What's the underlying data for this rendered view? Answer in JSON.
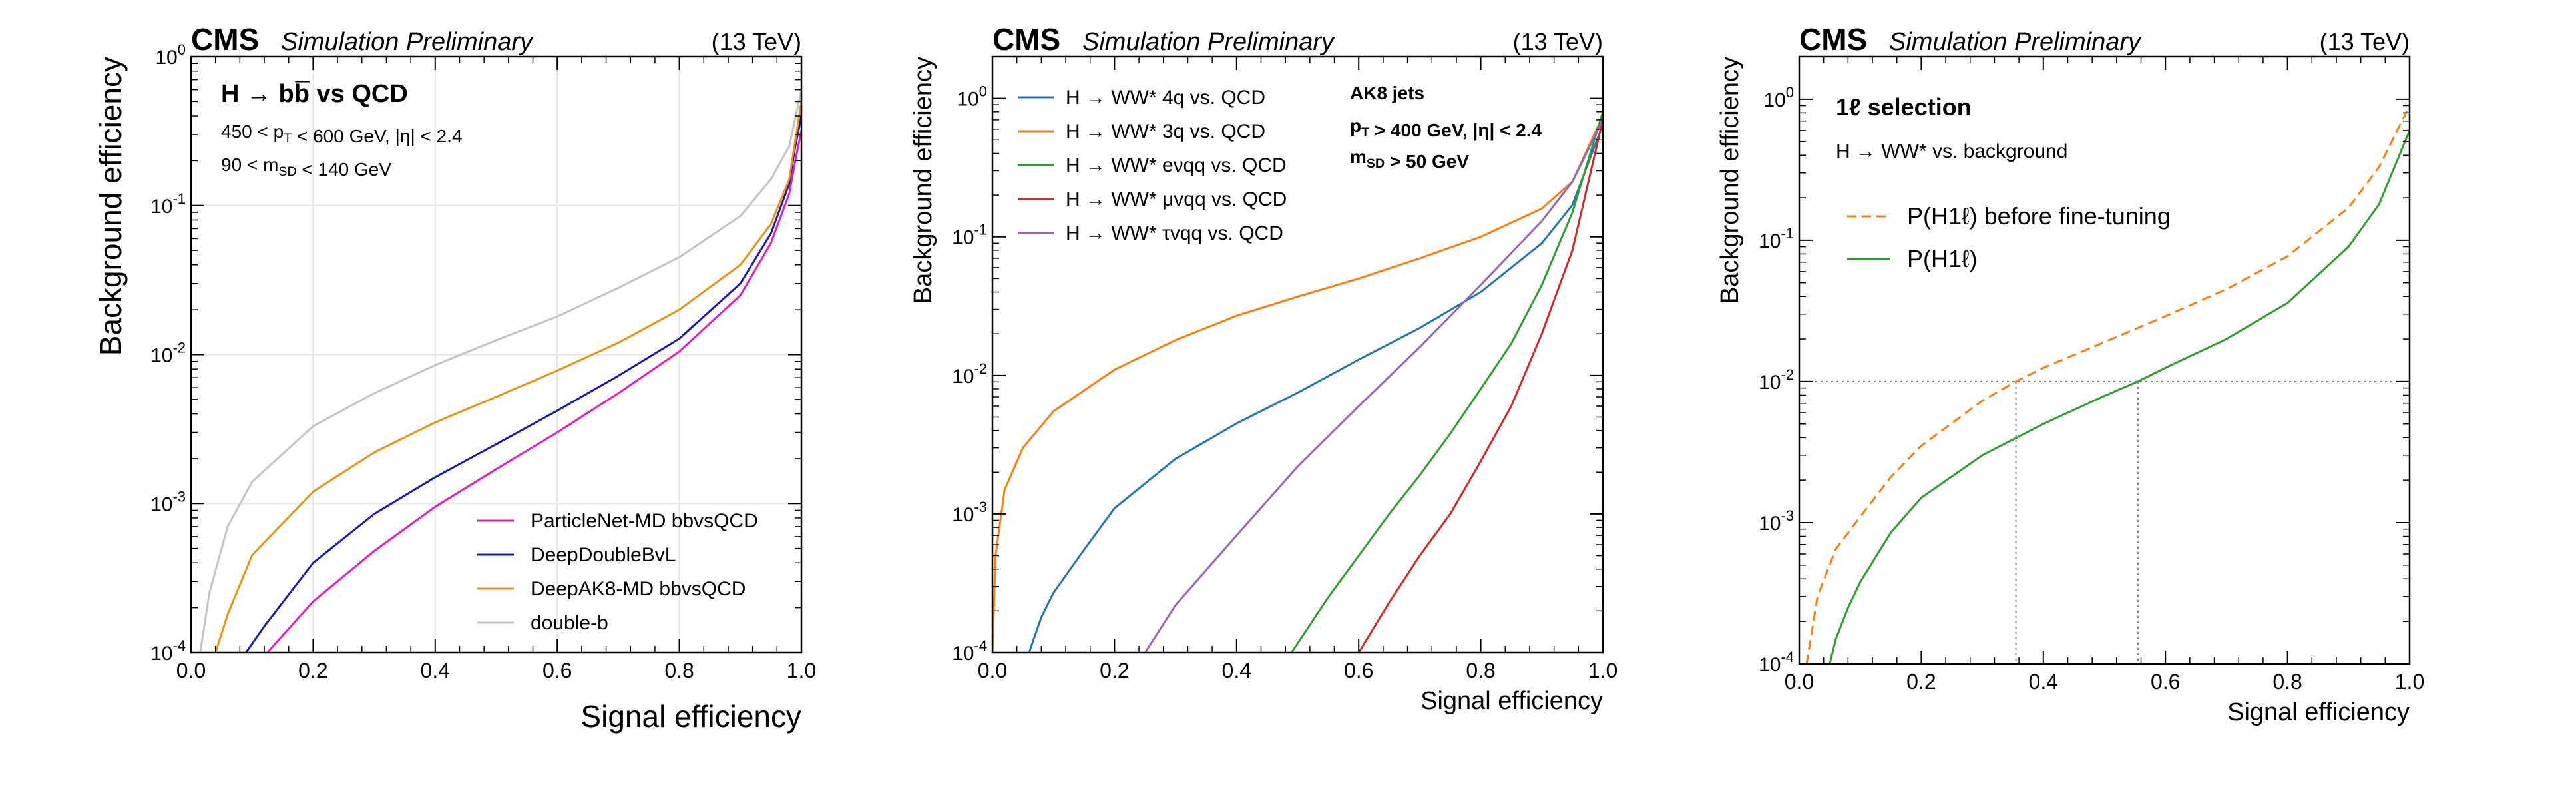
{
  "chart_data": [
    {
      "type": "line",
      "yscale": "log",
      "title_left": "CMS",
      "title_sub": "Simulation Preliminary",
      "title_right": "(13 TeV)",
      "xlabel": "Signal efficiency",
      "ylabel": "Background efficiency",
      "xlim": [
        0.0,
        1.0
      ],
      "ylim": [
        0.0001,
        1
      ],
      "grid": true,
      "xticks": [
        "0.0",
        "0.2",
        "0.4",
        "0.6",
        "0.8",
        "1.0"
      ],
      "yticks": [
        "10^-4",
        "10^-3",
        "10^-2",
        "10^-1",
        "10^0"
      ],
      "annotations": [
        {
          "text": "H → bb̅ vs QCD",
          "bold": true
        },
        {
          "text": "450 < p_T < 600 GeV, |η| < 2.4"
        },
        {
          "text": "90 < m_SD < 140 GeV"
        }
      ],
      "legend_position": "lower-right",
      "series": [
        {
          "name": "ParticleNet-MD bbvsQCD",
          "color": "#e41ac9",
          "x": [
            0.125,
            0.15,
            0.2,
            0.3,
            0.4,
            0.5,
            0.6,
            0.7,
            0.8,
            0.9,
            0.95,
            0.98,
            0.99,
            1.0
          ],
          "y": [
            0.0001,
            0.00013,
            0.00022,
            0.00048,
            0.00095,
            0.0017,
            0.003,
            0.0055,
            0.0105,
            0.025,
            0.056,
            0.12,
            0.2,
            0.32
          ]
        },
        {
          "name": "DeepDoubleBvL",
          "color": "#1919b5",
          "x": [
            0.09,
            0.12,
            0.2,
            0.3,
            0.4,
            0.5,
            0.6,
            0.7,
            0.8,
            0.9,
            0.95,
            0.98,
            0.99,
            1.0
          ],
          "y": [
            0.0001,
            0.00015,
            0.0004,
            0.00085,
            0.0015,
            0.0025,
            0.0042,
            0.0072,
            0.0128,
            0.03,
            0.065,
            0.14,
            0.25,
            0.4
          ]
        },
        {
          "name": "DeepAK8-MD bbvsQCD",
          "color": "#e8940e",
          "x": [
            0.04,
            0.06,
            0.1,
            0.2,
            0.3,
            0.4,
            0.5,
            0.6,
            0.7,
            0.8,
            0.9,
            0.95,
            0.98,
            1.0
          ],
          "y": [
            0.0001,
            0.00018,
            0.00045,
            0.0012,
            0.0022,
            0.0035,
            0.0052,
            0.0078,
            0.012,
            0.02,
            0.04,
            0.075,
            0.15,
            0.5
          ]
        },
        {
          "name": "double-b",
          "color": "#c4c4c4",
          "x": [
            0.015,
            0.03,
            0.06,
            0.1,
            0.2,
            0.3,
            0.4,
            0.5,
            0.6,
            0.7,
            0.8,
            0.9,
            0.95,
            0.98,
            1.0
          ],
          "y": [
            0.0001,
            0.00025,
            0.0007,
            0.0014,
            0.0033,
            0.0055,
            0.0085,
            0.0125,
            0.018,
            0.028,
            0.045,
            0.085,
            0.15,
            0.25,
            0.6
          ]
        }
      ]
    },
    {
      "type": "line",
      "yscale": "log",
      "title_left": "CMS",
      "title_sub": "Simulation Preliminary",
      "title_right": "(13 TeV)",
      "xlabel": "Signal efficiency",
      "ylabel": "Background efficiency",
      "xlim": [
        0.0,
        1.0
      ],
      "ylim": [
        0.0001,
        2
      ],
      "grid": false,
      "xticks": [
        "0.0",
        "0.2",
        "0.4",
        "0.6",
        "0.8",
        "1.0"
      ],
      "yticks": [
        "10^-4",
        "10^-3",
        "10^-2",
        "10^-1",
        "10^0"
      ],
      "annotations": [
        {
          "text": "AK8 jets",
          "bold": true
        },
        {
          "text": "p_T > 400 GeV, |η| < 2.4",
          "bold": true
        },
        {
          "text": "m_SD > 50 GeV",
          "bold": true
        }
      ],
      "legend_position": "top-left",
      "series": [
        {
          "name": "H → WW* 4q vs. QCD",
          "color": "#1f77b4",
          "x": [
            0.06,
            0.08,
            0.1,
            0.15,
            0.2,
            0.3,
            0.4,
            0.5,
            0.6,
            0.7,
            0.8,
            0.9,
            0.95,
            1.0
          ],
          "y": [
            0.0001,
            0.00018,
            0.00027,
            0.00055,
            0.0011,
            0.0025,
            0.0045,
            0.0075,
            0.013,
            0.022,
            0.04,
            0.09,
            0.17,
            0.65
          ]
        },
        {
          "name": "H → WW* 3q vs. QCD",
          "color": "#ff7f0e",
          "x": [
            0.0,
            0.005,
            0.02,
            0.05,
            0.1,
            0.2,
            0.3,
            0.4,
            0.5,
            0.6,
            0.7,
            0.8,
            0.9,
            0.95,
            1.0
          ],
          "y": [
            0.0001,
            0.0005,
            0.0015,
            0.003,
            0.0055,
            0.011,
            0.018,
            0.027,
            0.037,
            0.05,
            0.07,
            0.1,
            0.16,
            0.25,
            0.75
          ]
        },
        {
          "name": "H → WW* eνqq vs. QCD",
          "color": "#2ca02c",
          "x": [
            0.49,
            0.55,
            0.6,
            0.65,
            0.7,
            0.75,
            0.8,
            0.85,
            0.9,
            0.95,
            1.0
          ],
          "y": [
            0.0001,
            0.00025,
            0.0005,
            0.001,
            0.0019,
            0.0038,
            0.008,
            0.017,
            0.045,
            0.15,
            0.8
          ]
        },
        {
          "name": "H → WW* μvqq vs. QCD",
          "color": "#d62728",
          "x": [
            0.6,
            0.65,
            0.7,
            0.75,
            0.8,
            0.85,
            0.9,
            0.95,
            1.0
          ],
          "y": [
            0.0001,
            0.00023,
            0.0005,
            0.001,
            0.0024,
            0.006,
            0.02,
            0.08,
            0.7
          ]
        },
        {
          "name": "H → WW* τvqq vs. QCD",
          "color": "#9467bd",
          "x": [
            0.25,
            0.3,
            0.4,
            0.5,
            0.6,
            0.7,
            0.8,
            0.9,
            0.95,
            1.0
          ],
          "y": [
            0.0001,
            0.00022,
            0.0007,
            0.0022,
            0.006,
            0.016,
            0.045,
            0.13,
            0.25,
            0.7
          ]
        }
      ]
    },
    {
      "type": "line",
      "yscale": "log",
      "title_left": "CMS",
      "title_sub": "Simulation Preliminary",
      "title_right": "(13 TeV)",
      "xlabel": "Signal efficiency",
      "ylabel": "Background efficiency",
      "xlim": [
        0.0,
        1.0
      ],
      "ylim": [
        0.0001,
        2
      ],
      "grid": false,
      "xticks": [
        "0.0",
        "0.2",
        "0.4",
        "0.6",
        "0.8",
        "1.0"
      ],
      "yticks": [
        "10^-4",
        "10^-3",
        "10^-2",
        "10^-1",
        "10^0"
      ],
      "annotations": [
        {
          "text": "1ℓ   selection",
          "bold": true
        },
        {
          "text": "H → WW* vs. background"
        }
      ],
      "reference_lines": [
        {
          "axis": "y",
          "value": 0.01
        },
        {
          "axis": "x",
          "value": 0.355
        },
        {
          "axis": "x",
          "value": 0.555
        }
      ],
      "legend_position": "upper-left",
      "series": [
        {
          "name": "P(H1ℓ) before fine-tuning",
          "color": "#ff7f0e",
          "dashed": true,
          "x": [
            0.012,
            0.03,
            0.06,
            0.1,
            0.15,
            0.2,
            0.3,
            0.355,
            0.4,
            0.5,
            0.6,
            0.7,
            0.8,
            0.9,
            0.95,
            1.0
          ],
          "y": [
            0.0001,
            0.0003,
            0.00065,
            0.0011,
            0.0021,
            0.0035,
            0.0073,
            0.01,
            0.0125,
            0.019,
            0.029,
            0.045,
            0.077,
            0.17,
            0.33,
            0.9
          ]
        },
        {
          "name": "P(H1ℓ)",
          "color": "#2ca02c",
          "dashed": false,
          "x": [
            0.05,
            0.06,
            0.08,
            0.1,
            0.15,
            0.2,
            0.3,
            0.4,
            0.5,
            0.555,
            0.6,
            0.7,
            0.8,
            0.9,
            0.95,
            1.0
          ],
          "y": [
            0.0001,
            0.00015,
            0.00025,
            0.00038,
            0.00085,
            0.0015,
            0.003,
            0.005,
            0.0079,
            0.01,
            0.0125,
            0.02,
            0.036,
            0.09,
            0.18,
            0.6
          ]
        }
      ]
    }
  ]
}
